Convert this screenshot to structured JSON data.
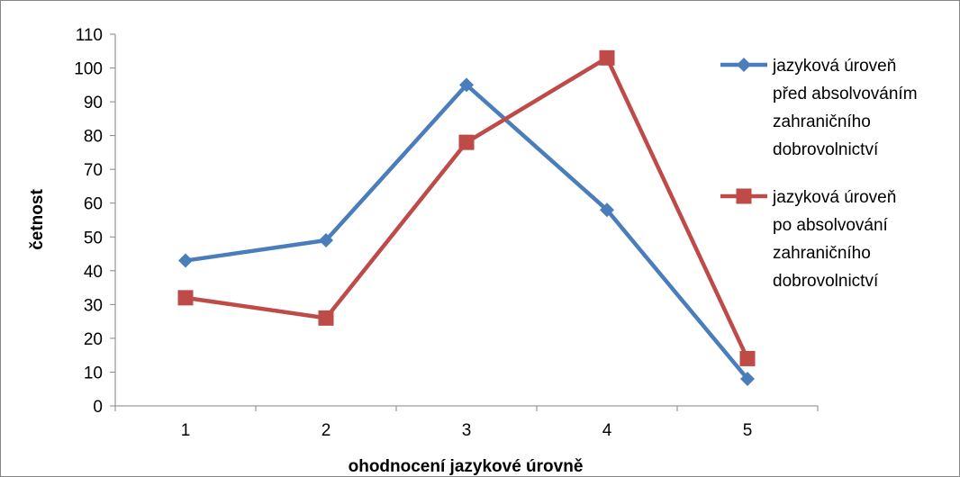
{
  "chart_data": {
    "type": "line",
    "categories": [
      "1",
      "2",
      "3",
      "4",
      "5"
    ],
    "series": [
      {
        "name": "jazyková úroveň před absolvováním zahraničního dobrovolnictví",
        "legend_lines": [
          "jazyková úroveň",
          "před absolvováním",
          "zahraničního",
          "dobrovolnictví"
        ],
        "values": [
          43,
          49,
          95,
          58,
          8
        ],
        "color": "#4a7ebb",
        "marker": "diamond"
      },
      {
        "name": "jazyková úroveň po absolvování zahraničního dobrovolnictví",
        "legend_lines": [
          "jazyková úroveň",
          "po absolvování",
          "zahraničního",
          "dobrovolnictví"
        ],
        "values": [
          32,
          26,
          78,
          103,
          14
        ],
        "color": "#be4b48",
        "marker": "square"
      }
    ],
    "xlabel": "ohodnocení jazykové úrovně",
    "ylabel": "četnost",
    "ylim": [
      0,
      110
    ],
    "yticks": [
      0,
      10,
      20,
      30,
      40,
      50,
      60,
      70,
      80,
      90,
      100,
      110
    ],
    "grid": false,
    "legend": "right"
  }
}
